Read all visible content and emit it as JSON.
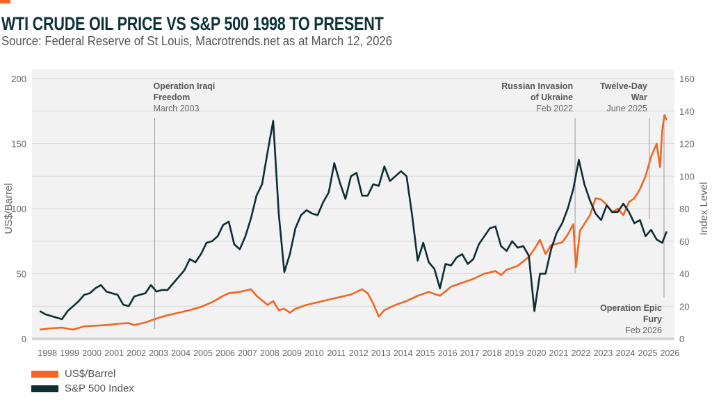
{
  "header": {
    "title": "WTI CRUDE OIL PRICE VS S&P 500 1998 TO PRESENT",
    "subtitle": "Source: Federal Reserve of St Louis, Macrotrends.net as at March 12, 2026"
  },
  "colors": {
    "accent": "#f26522",
    "orange": "#f26522",
    "dark": "#0d2d31",
    "plot_bg": "#f2f2f2",
    "grid": "#d6d6d6"
  },
  "legend": [
    {
      "label": "US$/Barrel",
      "color": "#f26522"
    },
    {
      "label": "S&P 500 Index",
      "color": "#0d2d31"
    }
  ],
  "chart_data": {
    "type": "line",
    "title": "WTI CRUDE OIL PRICE VS S&P 500 1998 TO PRESENT",
    "ylabel_left": "US$/Barrel",
    "ylabel_right": "Index Level",
    "ylim_left": [
      0,
      200
    ],
    "ylim_right": [
      0,
      160
    ],
    "yticks_left": [
      "0",
      "50",
      "100",
      "150",
      "200"
    ],
    "yticks_right": [
      "0",
      "20",
      "40",
      "60",
      "80",
      "100",
      "120",
      "140",
      "160"
    ],
    "xlim": [
      1998,
      2026.2
    ],
    "xticks": [
      "1998",
      "1999",
      "2000",
      "2001",
      "2002",
      "2003",
      "2004",
      "2005",
      "2006",
      "2007",
      "2008",
      "2009",
      "2010",
      "2011",
      "2012",
      "2013",
      "2014",
      "2015",
      "2016",
      "2017",
      "2018",
      "2019",
      "2020",
      "2021",
      "2022",
      "2023",
      "2024",
      "2025",
      "2026"
    ],
    "grid": true,
    "legend_position": "bottom-left",
    "series": [
      {
        "name": "US$/Barrel",
        "color": "#f26522",
        "axis": "left",
        "x": [
          1998.0,
          1998.5,
          1999.0,
          1999.5,
          2000.0,
          2000.5,
          2001.0,
          2001.5,
          2002.0,
          2002.25,
          2002.75,
          2003.25,
          2003.75,
          2004.25,
          2004.75,
          2005.25,
          2005.75,
          2006.25,
          2006.5,
          2007.0,
          2007.5,
          2007.75,
          2008.25,
          2008.5,
          2008.75,
          2009.0,
          2009.25,
          2009.5,
          2010.0,
          2010.5,
          2011.0,
          2011.5,
          2012.0,
          2012.5,
          2012.75,
          2013.0,
          2013.25,
          2013.5,
          2014.0,
          2014.5,
          2015.0,
          2015.5,
          2016.0,
          2016.5,
          2017.0,
          2017.5,
          2018.0,
          2018.5,
          2018.75,
          2019.0,
          2019.5,
          2020.0,
          2020.25,
          2020.5,
          2020.75,
          2021.0,
          2021.5,
          2021.75,
          2022.0,
          2022.12,
          2022.3,
          2022.75,
          2023.0,
          2023.25,
          2023.5,
          2023.75,
          2024.0,
          2024.25,
          2024.5,
          2024.75,
          2025.0,
          2025.25,
          2025.5,
          2025.75,
          2025.9,
          2026.0,
          2026.1,
          2026.2
        ],
        "y": [
          7,
          8,
          8.5,
          7,
          9.5,
          10,
          10.5,
          11.5,
          12,
          10.5,
          12.5,
          15.5,
          18,
          20,
          22,
          24.5,
          28,
          33,
          35,
          36,
          38,
          33,
          26,
          29,
          22,
          23,
          20,
          23,
          26,
          28,
          30,
          32,
          34,
          38,
          35,
          27,
          17,
          22,
          26,
          29,
          33,
          36,
          33,
          40,
          43,
          46,
          50,
          52,
          49,
          53,
          56,
          63,
          69,
          76,
          65,
          72,
          74,
          80,
          88,
          55,
          83,
          95,
          108,
          107,
          103,
          97,
          100,
          95,
          105,
          108,
          115,
          125,
          140,
          150,
          132,
          160,
          172,
          168
        ]
      },
      {
        "name": "S&P 500 Index",
        "color": "#0d2d31",
        "axis": "right",
        "x": [
          1998.0,
          1998.25,
          1998.5,
          1998.75,
          1999.0,
          1999.25,
          1999.5,
          1999.75,
          2000.0,
          2000.25,
          2000.5,
          2000.75,
          2001.0,
          2001.25,
          2001.5,
          2001.75,
          2002.0,
          2002.25,
          2002.5,
          2002.75,
          2003.0,
          2003.25,
          2003.5,
          2003.75,
          2004.0,
          2004.25,
          2004.5,
          2004.75,
          2005.0,
          2005.25,
          2005.5,
          2005.75,
          2006.0,
          2006.25,
          2006.5,
          2006.75,
          2007.0,
          2007.25,
          2007.5,
          2007.75,
          2008.0,
          2008.25,
          2008.5,
          2008.75,
          2009.0,
          2009.25,
          2009.5,
          2009.75,
          2010.0,
          2010.25,
          2010.5,
          2010.75,
          2011.0,
          2011.25,
          2011.5,
          2011.75,
          2012.0,
          2012.25,
          2012.5,
          2012.75,
          2013.0,
          2013.25,
          2013.5,
          2013.75,
          2014.0,
          2014.25,
          2014.5,
          2014.75,
          2015.0,
          2015.25,
          2015.5,
          2015.75,
          2016.0,
          2016.25,
          2016.5,
          2016.75,
          2017.0,
          2017.25,
          2017.5,
          2017.75,
          2018.0,
          2018.25,
          2018.5,
          2018.75,
          2019.0,
          2019.25,
          2019.5,
          2019.75,
          2020.0,
          2020.25,
          2020.5,
          2020.75,
          2021.0,
          2021.25,
          2021.5,
          2021.75,
          2022.0,
          2022.25,
          2022.5,
          2022.75,
          2023.0,
          2023.25,
          2023.5,
          2023.75,
          2024.0,
          2024.25,
          2024.5,
          2024.75,
          2025.0,
          2025.25,
          2025.5,
          2025.75,
          2026.0,
          2026.2
        ],
        "y": [
          17,
          15,
          14,
          13,
          12,
          17,
          20,
          23,
          27,
          28,
          31,
          33,
          29,
          28,
          27,
          21,
          20,
          26,
          27,
          28,
          33,
          29,
          30,
          30,
          34,
          38,
          42,
          49,
          47,
          52,
          59,
          60,
          63,
          70,
          72,
          58,
          55,
          63,
          74,
          88,
          95,
          115,
          134,
          77,
          41,
          52,
          68,
          76,
          79,
          77,
          76,
          84,
          90,
          108,
          96,
          86,
          100,
          102,
          88,
          88,
          95,
          94,
          106,
          97,
          100,
          103,
          100,
          76,
          48,
          59,
          47,
          43,
          31,
          46,
          45,
          50,
          52,
          46,
          49,
          58,
          63,
          68,
          69,
          57,
          54,
          60,
          56,
          57,
          51,
          17,
          40,
          40,
          55,
          65,
          71,
          80,
          92,
          110,
          95,
          85,
          77,
          73,
          82,
          78,
          78,
          83,
          78,
          71,
          73,
          63,
          67,
          61,
          59,
          66
        ]
      }
    ],
    "annotations": [
      {
        "title": "Operation Iraqi Freedom",
        "lines": [
          "Operation Iraqi",
          "Freedom"
        ],
        "date": "March 2003",
        "x": 2003.17,
        "align": "left",
        "position": "top"
      },
      {
        "title": "Russian Invasion of Ukraine",
        "lines": [
          "Russian Invasion",
          "of Ukraine"
        ],
        "date": "Feb 2022",
        "x": 2022.08,
        "align": "right",
        "position": "top"
      },
      {
        "title": "Twelve-Day War",
        "lines": [
          "Twelve-Day",
          "War"
        ],
        "date": "June 2025",
        "x": 2025.42,
        "align": "right",
        "position": "top"
      },
      {
        "title": "Operation Epic Fury",
        "lines": [
          "Operation Epic",
          "Fury"
        ],
        "date": "Feb 2026",
        "x": 2026.08,
        "align": "right",
        "position": "bottom"
      }
    ]
  }
}
